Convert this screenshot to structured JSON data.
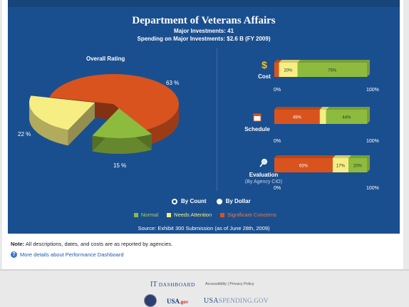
{
  "header": {
    "title": "Department of Veterans Affairs",
    "major_investments": "Major Investments: 41",
    "spending": "Spending on Major Investments: $2.6 B (FY 2009)"
  },
  "colors": {
    "normal": "#8dbb3e",
    "needs_attention": "#f7ee83",
    "significant_concerns": "#d9531e",
    "background": "#1a4f8f"
  },
  "chart_data": [
    {
      "type": "pie",
      "title": "Overall Rating",
      "categories": [
        "Normal",
        "Needs Attention",
        "Significant Concerns"
      ],
      "values": [
        15,
        22,
        63
      ],
      "labels": [
        "15 %",
        "22 %",
        "63 %"
      ]
    },
    {
      "type": "bar",
      "stacked": true,
      "orientation": "horizontal",
      "categories": [
        "Cost",
        "Schedule",
        "Evaluation"
      ],
      "series": [
        {
          "name": "Significant Concerns",
          "values": [
            5,
            49,
            63
          ]
        },
        {
          "name": "Needs Attention",
          "values": [
            20,
            7,
            17
          ]
        },
        {
          "name": "Normal",
          "values": [
            75,
            44,
            20
          ]
        }
      ],
      "data_labels": {
        "Cost": [
          "",
          "20%",
          "75%"
        ],
        "Schedule": [
          "49%",
          "",
          "44%"
        ],
        "Evaluation": [
          "63%",
          "17%",
          "20%"
        ]
      },
      "xlim": [
        0,
        100
      ],
      "axis_labels": [
        "0%",
        "100%"
      ]
    }
  ],
  "overall_rating_label": "Overall Rating",
  "metrics": {
    "cost": {
      "label": "Cost",
      "icon": "dollar-icon"
    },
    "schedule": {
      "label": "Schedule",
      "icon": "calendar-icon"
    },
    "evaluation": {
      "label": "Evaluation",
      "sub": "(By Agency CIO)",
      "icon": "magnifier-icon"
    }
  },
  "axis": {
    "min": "0%",
    "max": "100%"
  },
  "pie_labels": {
    "normal": "15 %",
    "attention": "22 %",
    "concerns": "63 %"
  },
  "radio": {
    "by_count": "By Count",
    "by_dollar": "By Dollar",
    "selected": "By Count"
  },
  "legend": {
    "normal": "Normal",
    "attention": "Needs Attention",
    "concerns": "Significant Concerns"
  },
  "source": "Source: Exhibit 300 Submission (as of June 28th, 2009)",
  "note": {
    "bold": "Note:",
    "text": " All descriptions, dates, and costs are as reported by agencies."
  },
  "more_link": "More details about Performance Dashboard",
  "footer": {
    "it_dashboard_it": "IT",
    "it_dashboard_rest": "DASHBOARD",
    "links": "Accessibility | Privacy Policy",
    "usa_gov": "USA",
    "usa_gov_suffix": ".gov",
    "usaspending_a": "USA",
    "usaspending_b": "SPENDING.GOV"
  }
}
